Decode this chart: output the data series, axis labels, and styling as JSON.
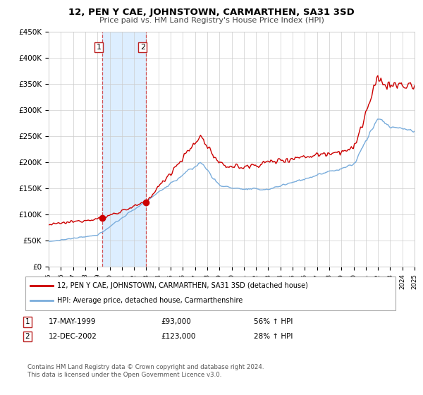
{
  "title": "12, PEN Y CAE, JOHNSTOWN, CARMARTHEN, SA31 3SD",
  "subtitle": "Price paid vs. HM Land Registry's House Price Index (HPI)",
  "x_start_year": 1995,
  "x_end_year": 2025,
  "y_ticks": [
    0,
    50000,
    100000,
    150000,
    200000,
    250000,
    300000,
    350000,
    400000,
    450000
  ],
  "y_labels": [
    "£0",
    "£50K",
    "£100K",
    "£150K",
    "£200K",
    "£250K",
    "£300K",
    "£350K",
    "£400K",
    "£450K"
  ],
  "sale1_date": 1999.37,
  "sale1_price": 93000,
  "sale1_label": "1",
  "sale2_date": 2002.95,
  "sale2_price": 123000,
  "sale2_label": "2",
  "sale1_info": "17-MAY-1999",
  "sale1_amount": "£93,000",
  "sale1_hpi": "56% ↑ HPI",
  "sale2_info": "12-DEC-2002",
  "sale2_amount": "£123,000",
  "sale2_hpi": "28% ↑ HPI",
  "legend1_label": "12, PEN Y CAE, JOHNSTOWN, CARMARTHEN, SA31 3SD (detached house)",
  "legend2_label": "HPI: Average price, detached house, Carmarthenshire",
  "footer": "Contains HM Land Registry data © Crown copyright and database right 2024.\nThis data is licensed under the Open Government Licence v3.0.",
  "red_color": "#cc0000",
  "blue_color": "#7aaddc",
  "shading_color": "#ddeeff",
  "grid_color": "#cccccc",
  "background_color": "#ffffff"
}
